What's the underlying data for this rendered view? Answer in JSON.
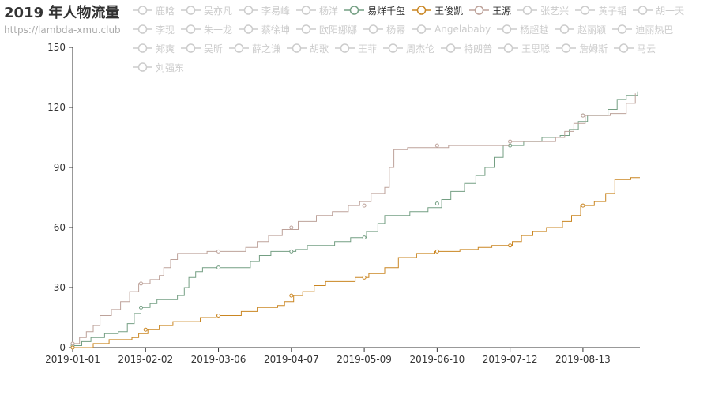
{
  "chart_data": {
    "type": "line",
    "title": "2019 年人物流量",
    "subtitle": "https://lambda-xmu.club",
    "legend_position": "top",
    "legend": [
      {
        "name": "鹿晗",
        "selected": false
      },
      {
        "name": "吴亦凡",
        "selected": false
      },
      {
        "name": "李易峰",
        "selected": false
      },
      {
        "name": "杨洋",
        "selected": false
      },
      {
        "name": "易烊千玺",
        "selected": true,
        "color": "#749f83"
      },
      {
        "name": "王俊凯",
        "selected": true,
        "color": "#ca8622"
      },
      {
        "name": "王源",
        "selected": true,
        "color": "#bda29a"
      },
      {
        "name": "张艺兴",
        "selected": false
      },
      {
        "name": "黄子韬",
        "selected": false
      },
      {
        "name": "胡一天",
        "selected": false
      },
      {
        "name": "李现",
        "selected": false
      },
      {
        "name": "朱一龙",
        "selected": false
      },
      {
        "name": "蔡徐坤",
        "selected": false
      },
      {
        "name": "欧阳娜娜",
        "selected": false
      },
      {
        "name": "杨幂",
        "selected": false
      },
      {
        "name": "Angelababy",
        "selected": false
      },
      {
        "name": "杨超越",
        "selected": false
      },
      {
        "name": "赵丽颖",
        "selected": false
      },
      {
        "name": "迪丽热巴",
        "selected": false
      },
      {
        "name": "郑爽",
        "selected": false
      },
      {
        "name": "吴昕",
        "selected": false
      },
      {
        "name": "薛之谦",
        "selected": false
      },
      {
        "name": "胡歌",
        "selected": false
      },
      {
        "name": "王菲",
        "selected": false
      },
      {
        "name": "周杰伦",
        "selected": false
      },
      {
        "name": "特朗普",
        "selected": false
      },
      {
        "name": "王思聪",
        "selected": false
      },
      {
        "name": "詹姆斯",
        "selected": false
      },
      {
        "name": "马云",
        "selected": false
      },
      {
        "name": "刘强东",
        "selected": false
      }
    ],
    "x_axis": {
      "type": "date",
      "range": [
        "2019-01-01",
        "2019-09-07"
      ],
      "tick_labels": [
        "2019-01-01",
        "2019-02-02",
        "2019-03-06",
        "2019-04-07",
        "2019-05-09",
        "2019-06-10",
        "2019-07-12",
        "2019-08-13"
      ]
    },
    "y_axis": {
      "range": [
        0,
        150
      ],
      "ticks": [
        0,
        30,
        60,
        90,
        120,
        150
      ]
    },
    "grid": false,
    "step": true,
    "series": [
      {
        "name": "易烊千玺",
        "color": "#749f83",
        "points": [
          [
            "2019-01-01",
            1
          ],
          [
            "2019-01-05",
            3
          ],
          [
            "2019-01-09",
            5
          ],
          [
            "2019-01-15",
            7
          ],
          [
            "2019-01-21",
            8
          ],
          [
            "2019-01-25",
            12
          ],
          [
            "2019-01-28",
            17
          ],
          [
            "2019-01-31",
            20
          ],
          [
            "2019-02-04",
            22
          ],
          [
            "2019-02-07",
            24
          ],
          [
            "2019-02-16",
            26
          ],
          [
            "2019-02-19",
            30
          ],
          [
            "2019-02-21",
            35
          ],
          [
            "2019-02-24",
            38
          ],
          [
            "2019-02-27",
            40
          ],
          [
            "2019-03-20",
            43
          ],
          [
            "2019-03-24",
            46
          ],
          [
            "2019-03-29",
            48
          ],
          [
            "2019-04-09",
            49
          ],
          [
            "2019-04-14",
            51
          ],
          [
            "2019-04-26",
            53
          ],
          [
            "2019-05-03",
            55
          ],
          [
            "2019-05-10",
            58
          ],
          [
            "2019-05-15",
            62
          ],
          [
            "2019-05-18",
            66
          ],
          [
            "2019-05-29",
            68
          ],
          [
            "2019-06-06",
            70
          ],
          [
            "2019-06-12",
            74
          ],
          [
            "2019-06-16",
            78
          ],
          [
            "2019-06-22",
            82
          ],
          [
            "2019-06-27",
            86
          ],
          [
            "2019-07-01",
            90
          ],
          [
            "2019-07-05",
            95
          ],
          [
            "2019-07-09",
            101
          ],
          [
            "2019-07-18",
            103
          ],
          [
            "2019-07-26",
            105
          ],
          [
            "2019-08-03",
            106
          ],
          [
            "2019-08-07",
            109
          ],
          [
            "2019-08-11",
            113
          ],
          [
            "2019-08-15",
            116
          ],
          [
            "2019-08-20",
            116
          ],
          [
            "2019-08-24",
            119
          ],
          [
            "2019-08-28",
            124
          ],
          [
            "2019-09-01",
            126
          ],
          [
            "2019-09-06",
            128
          ]
        ],
        "markers": [
          [
            "2019-01-01",
            1
          ],
          [
            "2019-01-31",
            20
          ],
          [
            "2019-03-06",
            40
          ],
          [
            "2019-04-07",
            48
          ],
          [
            "2019-05-09",
            55
          ],
          [
            "2019-06-10",
            72
          ],
          [
            "2019-07-12",
            101
          ],
          [
            "2019-08-13",
            116
          ]
        ]
      },
      {
        "name": "王俊凯",
        "color": "#ca8622",
        "points": [
          [
            "2019-01-01",
            0
          ],
          [
            "2019-01-10",
            2
          ],
          [
            "2019-01-17",
            4
          ],
          [
            "2019-01-27",
            5
          ],
          [
            "2019-01-30",
            7
          ],
          [
            "2019-02-03",
            9
          ],
          [
            "2019-02-08",
            11
          ],
          [
            "2019-02-14",
            13
          ],
          [
            "2019-02-26",
            15
          ],
          [
            "2019-03-05",
            16
          ],
          [
            "2019-03-16",
            18
          ],
          [
            "2019-03-23",
            20
          ],
          [
            "2019-04-01",
            21
          ],
          [
            "2019-04-04",
            23
          ],
          [
            "2019-04-08",
            26
          ],
          [
            "2019-04-12",
            28
          ],
          [
            "2019-04-17",
            31
          ],
          [
            "2019-04-22",
            33
          ],
          [
            "2019-05-05",
            35
          ],
          [
            "2019-05-11",
            37
          ],
          [
            "2019-05-18",
            40
          ],
          [
            "2019-05-24",
            45
          ],
          [
            "2019-06-01",
            47
          ],
          [
            "2019-06-09",
            48
          ],
          [
            "2019-06-20",
            49
          ],
          [
            "2019-06-28",
            50
          ],
          [
            "2019-07-04",
            51
          ],
          [
            "2019-07-13",
            53
          ],
          [
            "2019-07-17",
            56
          ],
          [
            "2019-07-22",
            58
          ],
          [
            "2019-07-28",
            60
          ],
          [
            "2019-08-04",
            63
          ],
          [
            "2019-08-08",
            66
          ],
          [
            "2019-08-12",
            71
          ],
          [
            "2019-08-18",
            73
          ],
          [
            "2019-08-23",
            77
          ],
          [
            "2019-08-27",
            84
          ],
          [
            "2019-09-03",
            85
          ],
          [
            "2019-09-07",
            85
          ]
        ],
        "markers": [
          [
            "2019-01-01",
            0
          ],
          [
            "2019-02-02",
            9
          ],
          [
            "2019-03-06",
            16
          ],
          [
            "2019-04-07",
            26
          ],
          [
            "2019-05-09",
            35
          ],
          [
            "2019-06-10",
            48
          ],
          [
            "2019-07-12",
            51
          ],
          [
            "2019-08-13",
            71
          ]
        ]
      },
      {
        "name": "王源",
        "color": "#bda29a",
        "points": [
          [
            "2019-01-01",
            2
          ],
          [
            "2019-01-04",
            5
          ],
          [
            "2019-01-07",
            8
          ],
          [
            "2019-01-10",
            11
          ],
          [
            "2019-01-13",
            16
          ],
          [
            "2019-01-18",
            19
          ],
          [
            "2019-01-22",
            23
          ],
          [
            "2019-01-26",
            28
          ],
          [
            "2019-01-30",
            32
          ],
          [
            "2019-02-04",
            34
          ],
          [
            "2019-02-08",
            36
          ],
          [
            "2019-02-10",
            40
          ],
          [
            "2019-02-13",
            44
          ],
          [
            "2019-02-16",
            47
          ],
          [
            "2019-03-01",
            48
          ],
          [
            "2019-03-18",
            50
          ],
          [
            "2019-03-23",
            53
          ],
          [
            "2019-03-28",
            56
          ],
          [
            "2019-04-03",
            59
          ],
          [
            "2019-04-10",
            63
          ],
          [
            "2019-04-18",
            66
          ],
          [
            "2019-04-25",
            68
          ],
          [
            "2019-05-02",
            71
          ],
          [
            "2019-05-07",
            73
          ],
          [
            "2019-05-12",
            77
          ],
          [
            "2019-05-18",
            80
          ],
          [
            "2019-05-20",
            90
          ],
          [
            "2019-05-22",
            99
          ],
          [
            "2019-05-28",
            100
          ],
          [
            "2019-06-15",
            101
          ],
          [
            "2019-07-12",
            103
          ],
          [
            "2019-08-01",
            105
          ],
          [
            "2019-08-05",
            108
          ],
          [
            "2019-08-09",
            112
          ],
          [
            "2019-08-14",
            116
          ],
          [
            "2019-08-25",
            117
          ],
          [
            "2019-09-01",
            122
          ],
          [
            "2019-09-05",
            127
          ]
        ],
        "markers": [
          [
            "2019-01-01",
            2
          ],
          [
            "2019-01-31",
            32
          ],
          [
            "2019-03-06",
            48
          ],
          [
            "2019-04-07",
            60
          ],
          [
            "2019-05-09",
            71
          ],
          [
            "2019-06-10",
            101
          ],
          [
            "2019-07-12",
            103
          ],
          [
            "2019-08-13",
            116
          ]
        ]
      }
    ]
  }
}
